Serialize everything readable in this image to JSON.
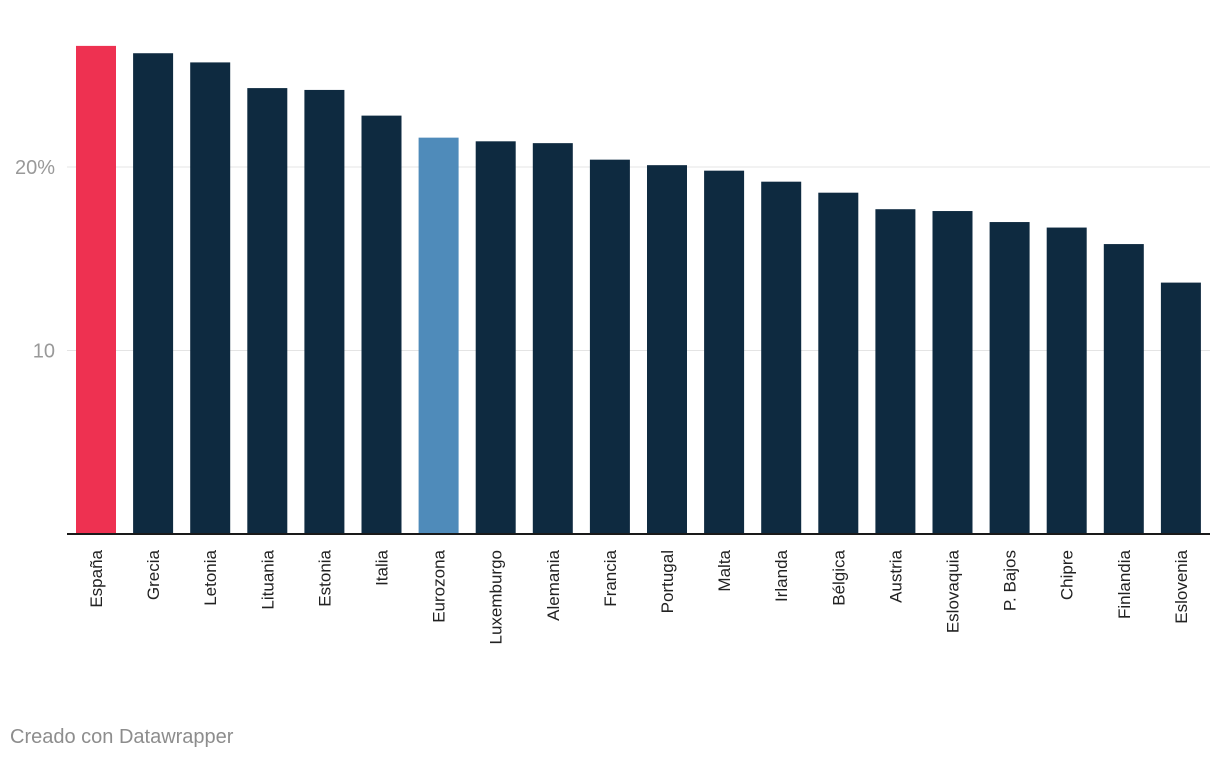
{
  "chart_data": {
    "type": "bar",
    "title": "",
    "xlabel": "",
    "ylabel": "",
    "ylim": [
      0,
      27
    ],
    "y_ticks": [
      {
        "value": 10,
        "label": "10"
      },
      {
        "value": 20,
        "label": "20%"
      }
    ],
    "grid": true,
    "categories": [
      "España",
      "Grecia",
      "Letonia",
      "Lituania",
      "Estonia",
      "Italia",
      "Eurozona",
      "Luxemburgo",
      "Alemania",
      "Francia",
      "Portugal",
      "Malta",
      "Irlanda",
      "Bélgica",
      "Austria",
      "Eslovaquia",
      "P. Bajos",
      "Chipre",
      "Finlandia",
      "Eslovenia"
    ],
    "values": [
      26.6,
      26.2,
      25.7,
      24.3,
      24.2,
      22.8,
      21.6,
      21.4,
      21.3,
      20.4,
      20.1,
      19.8,
      19.2,
      18.6,
      17.7,
      17.6,
      17.0,
      16.7,
      15.8,
      13.7
    ],
    "colors": [
      "#ee3151",
      "#0e2a40",
      "#0e2a40",
      "#0e2a40",
      "#0e2a40",
      "#0e2a40",
      "#4f8bba",
      "#0e2a40",
      "#0e2a40",
      "#0e2a40",
      "#0e2a40",
      "#0e2a40",
      "#0e2a40",
      "#0e2a40",
      "#0e2a40",
      "#0e2a40",
      "#0e2a40",
      "#0e2a40",
      "#0e2a40",
      "#0e2a40"
    ]
  },
  "footer": {
    "credit": "Creado con Datawrapper"
  }
}
